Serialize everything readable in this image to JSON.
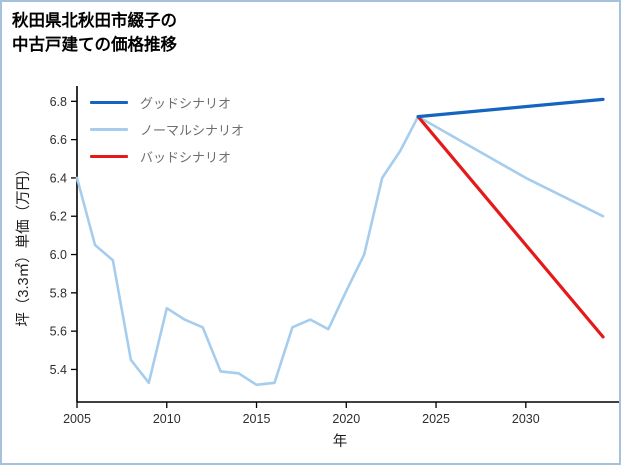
{
  "header": {
    "title_line1": "秋田県北秋田市綴子の",
    "title_line2": "中古戸建ての価格推移"
  },
  "chart_data": {
    "type": "line",
    "title": "秋田県北秋田市綴子の中古戸建ての価格推移",
    "xlabel": "年",
    "ylabel": "坪（3.3㎡）単価（万円）",
    "xlim": [
      2005,
      2034.3
    ],
    "ylim": [
      5.23,
      6.88
    ],
    "x_ticks": [
      2005,
      2010,
      2015,
      2020,
      2025,
      2030
    ],
    "y_ticks": [
      5.4,
      5.6,
      5.8,
      6.0,
      6.2,
      6.4,
      6.6,
      6.8
    ],
    "grid": false,
    "legend_position": "upper-left",
    "axis_color": "#000000",
    "series": [
      {
        "name": "グッドシナリオ",
        "color": "#1565c0",
        "width": 3.2,
        "x": [
          2024,
          2034.3
        ],
        "y": [
          6.72,
          6.81
        ]
      },
      {
        "name": "ノーマルシナリオ",
        "color": "#a6cdee",
        "width": 2.6,
        "x": [
          2005,
          2006,
          2007,
          2008,
          2009,
          2010,
          2011,
          2012,
          2013,
          2014,
          2015,
          2016,
          2017,
          2018,
          2019,
          2020,
          2021,
          2022,
          2023,
          2024,
          2027,
          2030,
          2034.3
        ],
        "y": [
          6.4,
          6.05,
          5.97,
          5.45,
          5.33,
          5.72,
          5.66,
          5.62,
          5.39,
          5.38,
          5.32,
          5.33,
          5.62,
          5.66,
          5.61,
          5.81,
          6.0,
          6.4,
          6.54,
          6.72,
          6.56,
          6.4,
          6.2
        ]
      },
      {
        "name": "バッドシナリオ",
        "color": "#e61919",
        "width": 3.2,
        "x": [
          2024,
          2034.3
        ],
        "y": [
          6.72,
          5.57
        ]
      }
    ]
  }
}
